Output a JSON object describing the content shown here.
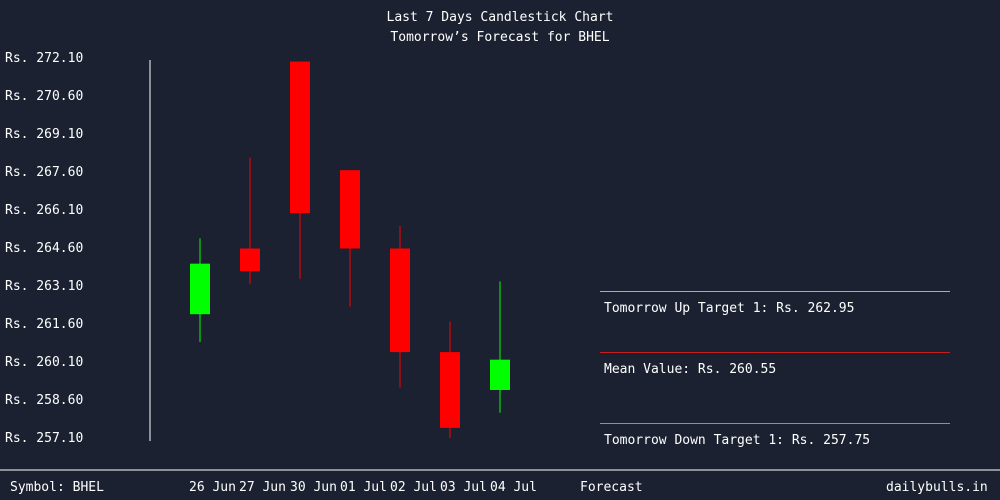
{
  "header": {
    "title": "Last 7 Days Candlestick Chart",
    "subtitle": "Tomorrow’s Forecast for BHEL"
  },
  "footer": {
    "symbol": "Symbol: BHEL",
    "forecast": "Forecast",
    "site": "dailybulls.in"
  },
  "forecast": {
    "up_target": "Tomorrow Up Target 1: Rs. 262.95",
    "mean_value": "Mean Value: Rs. 260.55",
    "down_target": "Tomorrow Down Target 1: Rs. 257.75",
    "up_color": "#ff9a2a",
    "mean_color": "#c81e1e",
    "down_color": "#22dd22"
  },
  "chart_data": {
    "type": "candlestick",
    "title": "Last 7 Days Candlestick Chart",
    "subtitle": "Tomorrow’s Forecast for BHEL",
    "yticks": [
      "Rs. 272.10",
      "Rs. 270.60",
      "Rs. 269.10",
      "Rs. 267.60",
      "Rs. 266.10",
      "Rs. 264.60",
      "Rs. 263.10",
      "Rs. 261.60",
      "Rs. 260.10",
      "Rs. 258.60",
      "Rs. 257.10"
    ],
    "ylim": [
      257.1,
      272.1
    ],
    "categories": [
      "26 Jun",
      "27 Jun",
      "30 Jun",
      "01 Jul",
      "02 Jul",
      "03 Jul",
      "04 Jul"
    ],
    "candles": [
      {
        "date": "26 Jun",
        "open": 262.0,
        "high": 265.0,
        "low": 260.9,
        "close": 264.0,
        "direction": "up"
      },
      {
        "date": "27 Jun",
        "open": 264.6,
        "high": 268.2,
        "low": 263.2,
        "close": 263.7,
        "direction": "down"
      },
      {
        "date": "30 Jun",
        "open": 272.0,
        "high": 272.0,
        "low": 263.4,
        "close": 266.0,
        "direction": "down"
      },
      {
        "date": "01 Jul",
        "open": 267.7,
        "high": 267.7,
        "low": 262.3,
        "close": 264.6,
        "direction": "down"
      },
      {
        "date": "02 Jul",
        "open": 264.6,
        "high": 265.5,
        "low": 259.1,
        "close": 260.5,
        "direction": "down"
      },
      {
        "date": "03 Jul",
        "open": 260.5,
        "high": 261.7,
        "low": 257.1,
        "close": 257.5,
        "direction": "down"
      },
      {
        "date": "04 Jul",
        "open": 259.0,
        "high": 263.3,
        "low": 258.1,
        "close": 260.2,
        "direction": "up"
      }
    ],
    "colors": {
      "up": "#00ff00",
      "down": "#ff0000",
      "axis": "#ffffff",
      "background": "#1b2130"
    }
  }
}
